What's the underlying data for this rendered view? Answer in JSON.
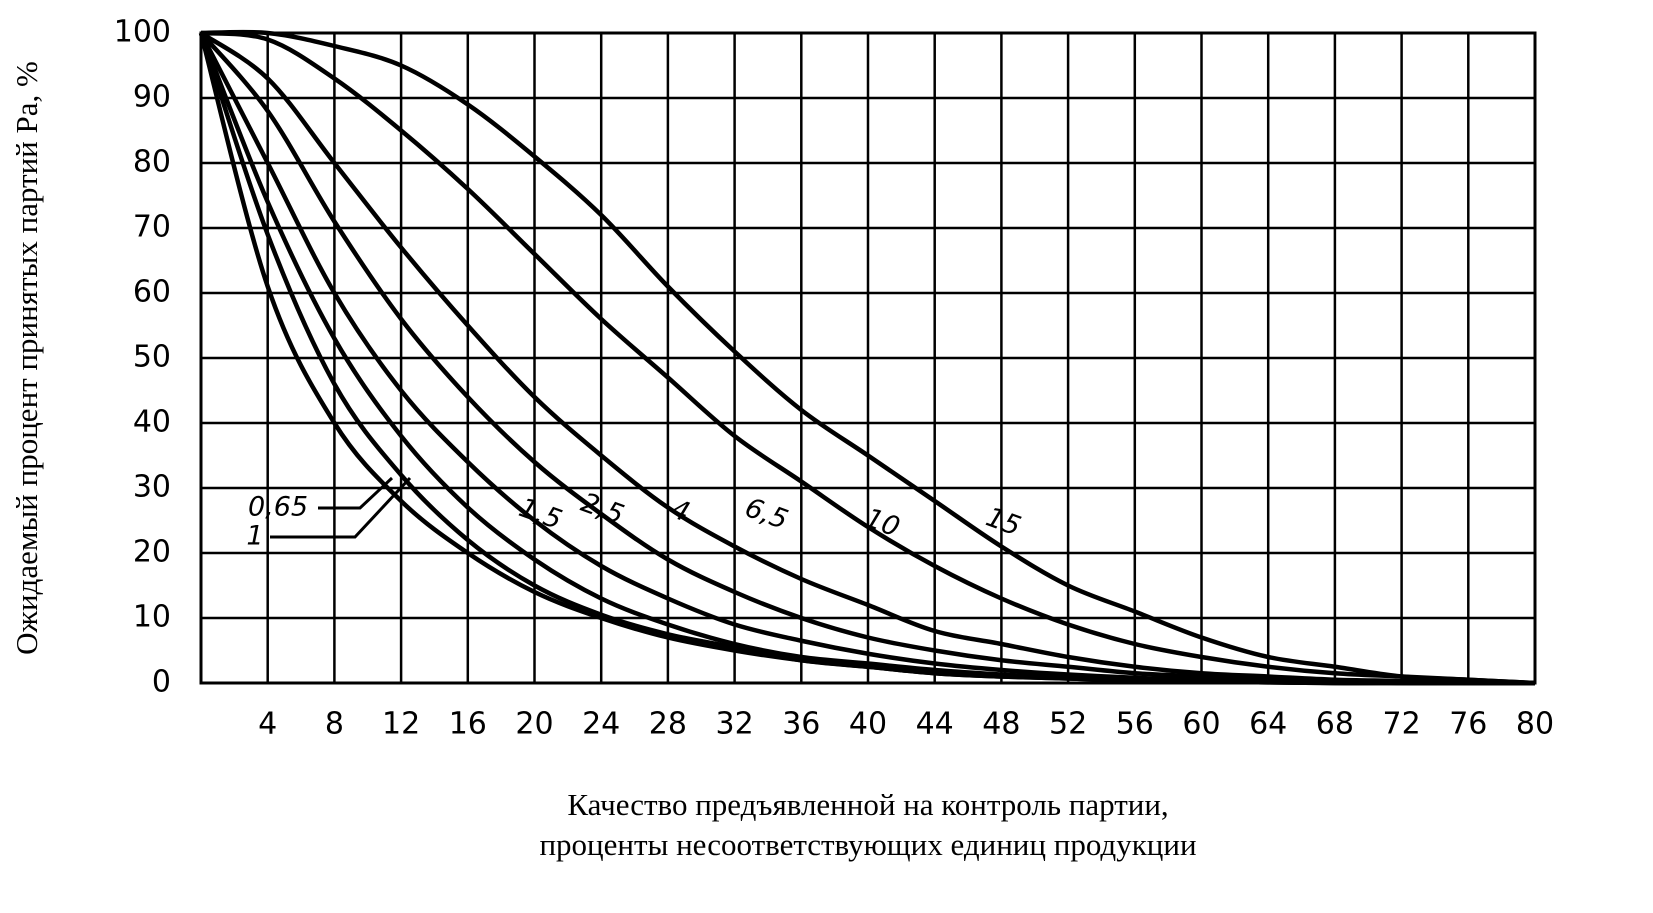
{
  "chart_data": {
    "type": "line",
    "ylabel": "Ожидаемый процент принятых партий Pa, %",
    "xlabel": [
      "Качество предъявленной на контроль партии,",
      "проценты несоответствующих единиц продукции"
    ],
    "x": [
      0,
      4,
      8,
      12,
      16,
      20,
      24,
      28,
      32,
      36,
      40,
      44,
      48,
      52,
      56,
      60,
      64,
      68,
      72,
      76,
      80
    ],
    "series": [
      {
        "name": "0,65",
        "color": "#000000",
        "values": [
          100,
          61,
          40,
          28,
          20,
          14,
          10,
          7,
          5,
          3.5,
          2.5,
          1.5,
          1,
          0.7,
          0.4,
          0.2,
          0.1,
          0,
          0,
          0,
          0
        ]
      },
      {
        "name": "1",
        "color": "#000000",
        "values": [
          100,
          69,
          46,
          32,
          22,
          15,
          10.5,
          7.5,
          5.5,
          3.5,
          2.5,
          1.5,
          1,
          0.7,
          0.4,
          0.2,
          0.1,
          0,
          0,
          0,
          0
        ]
      },
      {
        "name": "1,5",
        "color": "#000000",
        "values": [
          100,
          74,
          53,
          38,
          27,
          19,
          13,
          9,
          6,
          4,
          3,
          2,
          1.3,
          0.8,
          0.5,
          0.3,
          0.2,
          0,
          0,
          0,
          0
        ]
      },
      {
        "name": "2,5",
        "color": "#000000",
        "values": [
          100,
          80,
          60,
          45,
          34,
          25,
          18,
          13,
          9,
          6.5,
          4.5,
          3,
          2,
          1.3,
          0.8,
          0.5,
          0.3,
          0.2,
          0,
          0,
          0
        ]
      },
      {
        "name": "4",
        "color": "#000000",
        "values": [
          100,
          88,
          71,
          56,
          44,
          34,
          26,
          19,
          14,
          10,
          7,
          5,
          3.5,
          2.5,
          1.5,
          1,
          0.5,
          0.3,
          0,
          0,
          0
        ]
      },
      {
        "name": "6,5",
        "color": "#000000",
        "values": [
          100,
          93,
          80,
          67,
          55,
          44,
          35,
          27,
          21,
          16,
          12,
          8,
          6,
          4,
          2.5,
          1.5,
          1,
          0.5,
          0.3,
          0,
          0
        ]
      },
      {
        "name": "10",
        "color": "#000000",
        "values": [
          100,
          99,
          93,
          85,
          76,
          66,
          56,
          47,
          38,
          31,
          24,
          18,
          13,
          9,
          6,
          4,
          2.5,
          1.5,
          1,
          0.5,
          0
        ]
      },
      {
        "name": "15",
        "color": "#000000",
        "values": [
          100,
          100,
          98,
          95,
          89,
          81,
          72,
          61,
          51,
          42,
          35,
          28,
          21,
          15,
          11,
          7,
          4,
          2.5,
          1,
          0.5,
          0
        ]
      }
    ],
    "xlim": [
      0,
      80
    ],
    "xticks": [
      4,
      8,
      12,
      16,
      20,
      24,
      28,
      32,
      36,
      40,
      44,
      48,
      52,
      56,
      60,
      64,
      68,
      72,
      76,
      80
    ],
    "ylim": [
      0,
      100
    ],
    "yticks": [
      0,
      10,
      20,
      30,
      40,
      50,
      60,
      70,
      80,
      90,
      100
    ],
    "grid": true
  }
}
